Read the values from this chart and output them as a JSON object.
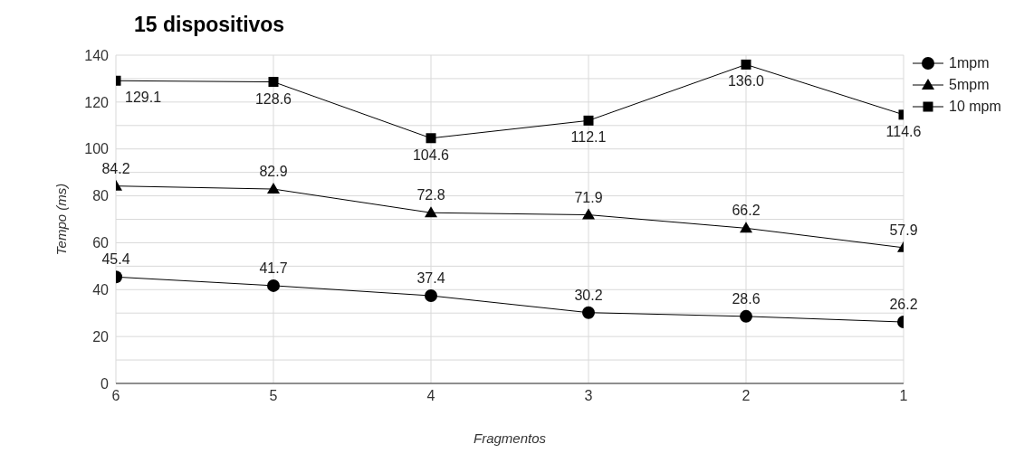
{
  "chart_data": {
    "type": "line",
    "title": "15 dispositivos",
    "xlabel": "Fragmentos",
    "ylabel": "Tempo (ms)",
    "categories": [
      "6",
      "5",
      "4",
      "3",
      "2",
      "1"
    ],
    "series": [
      {
        "name": "1mpm",
        "color": "#000000",
        "marker": "circle",
        "values": [
          45.4,
          41.7,
          37.4,
          30.2,
          28.6,
          26.2
        ],
        "value_labels": [
          "45.4",
          "41.7",
          "37.4",
          "30.2",
          "28.6",
          "26.2"
        ]
      },
      {
        "name": "5mpm",
        "color": "#000000",
        "marker": "triangle",
        "values": [
          84.2,
          82.9,
          72.8,
          71.9,
          66.2,
          57.9
        ],
        "value_labels": [
          "84.2",
          "82.9",
          "72.8",
          "71.9",
          "66.2",
          "57.9"
        ]
      },
      {
        "name": "10 mpm",
        "color": "#000000",
        "marker": "square",
        "values": [
          129.1,
          128.6,
          104.6,
          112.1,
          136.0,
          114.6
        ],
        "value_labels": [
          "129.1",
          "128.6",
          "104.6",
          "112.1",
          "136.0",
          "114.6"
        ]
      }
    ],
    "ylim": [
      0,
      140
    ],
    "yticks": [
      0,
      {
        "value": 10,
        "label": null
      },
      20,
      {
        "value": 30,
        "label": null
      },
      40,
      {
        "value": 50,
        "label": null
      },
      60,
      {
        "value": 70,
        "label": null
      },
      80,
      {
        "value": 90,
        "label": null
      },
      100,
      {
        "value": 110,
        "label": null
      },
      120,
      {
        "value": 130,
        "label": null
      },
      140
    ],
    "grid": true,
    "legend": "top right"
  }
}
